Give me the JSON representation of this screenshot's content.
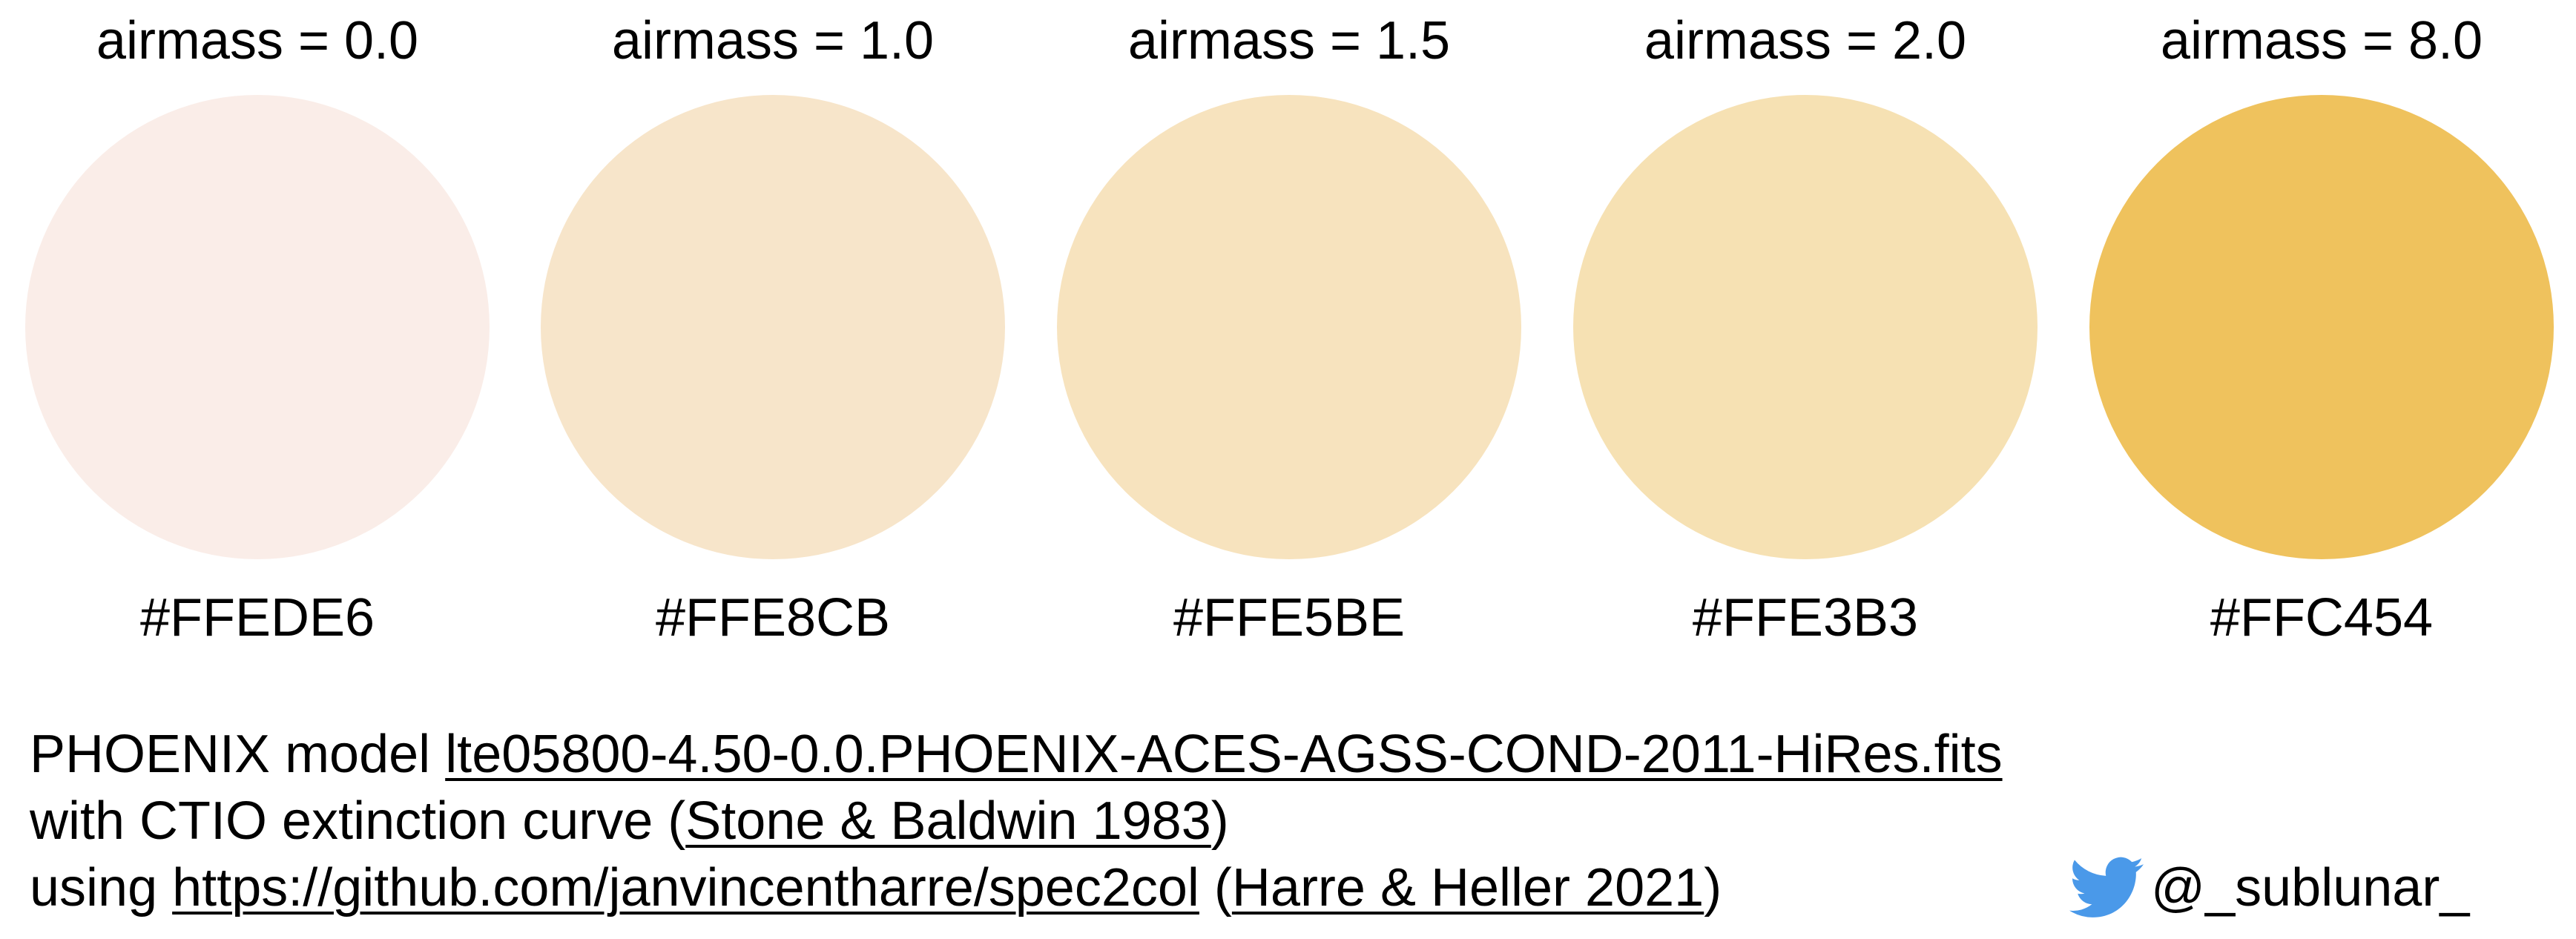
{
  "swatches": [
    {
      "label": "airmass = 0.0",
      "hex": "#FFEDE6",
      "color": "#FAEDE8"
    },
    {
      "label": "airmass = 1.0",
      "hex": "#FFE8CB",
      "color": "#F7E5CA"
    },
    {
      "label": "airmass = 1.5",
      "hex": "#FFE5BE",
      "color": "#F7E3BE"
    },
    {
      "label": "airmass = 2.0",
      "hex": "#FFE3B3",
      "color": "#F6E1B3"
    },
    {
      "label": "airmass = 8.0",
      "hex": "#FFC454",
      "color": "#EFC25D"
    }
  ],
  "caption": {
    "line1_prefix": "PHOENIX model  ",
    "model_file": "lte05800-4.50-0.0.PHOENIX-ACES-AGSS-COND-2011-HiRes.fits",
    "line2_prefix": "with CTIO extinction curve (",
    "extinction_ref": "Stone & Baldwin 1983",
    "line2_suffix": ")",
    "line3_prefix": "using ",
    "repo_url": "https://github.com/janvincentharre/spec2col",
    "line3_mid": " (",
    "tool_ref": "Harre & Heller 2021",
    "line3_suffix": ")"
  },
  "credit": {
    "icon": "twitter-bird-icon",
    "icon_color": "#4A99E9",
    "handle": "@_sublunar_"
  }
}
